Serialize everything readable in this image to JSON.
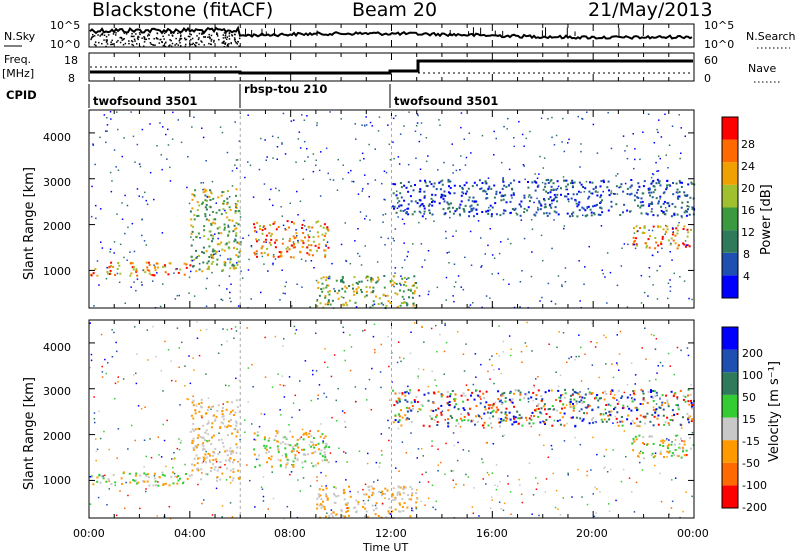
{
  "header": {
    "station": "Blackstone (fitACF)",
    "beam": "Beam 20",
    "date": "21/May/2013"
  },
  "sky_panel": {
    "left_label": "N.Sky",
    "right_label": "N.Search",
    "left_ticks": [
      "10^5",
      "10^0"
    ],
    "right_ticks": [
      "10^5",
      "10^0"
    ]
  },
  "freq_panel": {
    "left_label_1": "Freq.",
    "left_label_2": "[MHz]",
    "right_label": "Nave",
    "left_ticks": [
      "18",
      "8"
    ],
    "right_ticks": [
      "60",
      "0"
    ]
  },
  "cpid": {
    "label": "CPID",
    "segments": [
      {
        "name": "twofsound 3501",
        "start_hour": 0.0,
        "end_hour": 6.0
      },
      {
        "name": "rbsp-tou 210",
        "start_hour": 6.0,
        "end_hour": 12.0
      },
      {
        "name": "twofsound 3501",
        "start_hour": 12.0,
        "end_hour": 24.0
      }
    ]
  },
  "power_panel": {
    "ylabel": "Slant Range [km]",
    "yticks": [
      "1000",
      "2000",
      "3000",
      "4000"
    ],
    "colorbar_label": "Power [dB]",
    "colorbar_ticks": [
      "4",
      "8",
      "12",
      "16",
      "20",
      "24",
      "28"
    ],
    "colors": [
      "#0000ff",
      "#1f4fb0",
      "#2f7a5a",
      "#3b9a40",
      "#a0c030",
      "#f0a000",
      "#ff6a00",
      "#ff0000"
    ]
  },
  "velocity_panel": {
    "ylabel": "Slant Range [km]",
    "yticks": [
      "1000",
      "2000",
      "3000",
      "4000"
    ],
    "colorbar_label": "Velocity [m s⁻¹]",
    "colorbar_ticks": [
      "200",
      "100",
      "50",
      "15",
      "-15",
      "-50",
      "-100",
      "-200"
    ],
    "colors": [
      "#0000ff",
      "#1f4fb0",
      "#2f7a5a",
      "#33cc33",
      "#c8c8c8",
      "#ff9900",
      "#ff6a00",
      "#ff0000"
    ]
  },
  "xaxis": {
    "label": "Time UT",
    "ticks": [
      "00:00",
      "04:00",
      "08:00",
      "12:00",
      "16:00",
      "20:00",
      "00:00"
    ]
  },
  "chart_data": {
    "type": "heatmap",
    "x_range_hours": [
      0,
      24
    ],
    "y_range_km": [
      180,
      4500
    ],
    "power_regions": [
      {
        "t0": 0.0,
        "t1": 4.0,
        "r0": 900,
        "r1": 1200,
        "level": "high"
      },
      {
        "t0": 4.0,
        "t1": 6.0,
        "r0": 1000,
        "r1": 2800,
        "level": "medium"
      },
      {
        "t0": 6.5,
        "t1": 9.5,
        "r0": 1300,
        "r1": 2100,
        "level": "high"
      },
      {
        "t0": 9.0,
        "t1": 13.0,
        "r0": 200,
        "r1": 900,
        "level": "medium"
      },
      {
        "t0": 12.0,
        "t1": 24.0,
        "r0": 2200,
        "r1": 3000,
        "level": "low"
      },
      {
        "t0": 21.5,
        "t1": 24.0,
        "r0": 1500,
        "r1": 2000,
        "level": "high"
      }
    ]
  }
}
